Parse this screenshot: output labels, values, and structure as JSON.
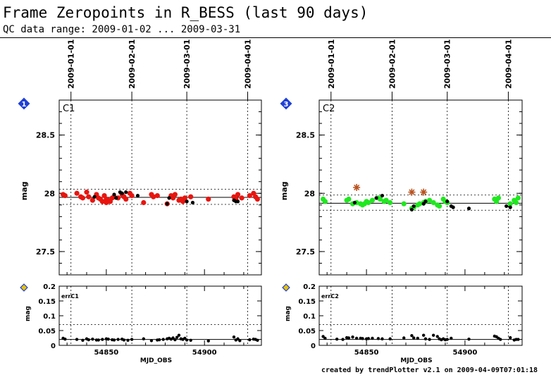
{
  "header": {
    "title": "Frame Zeropoints in R_BESS (last 90 days)",
    "subtitle": "QC data range: 2009-01-02 ... 2009-03-31"
  },
  "footer": "created by trendPlotter v2.1 on 2009-04-09T07:01:18",
  "colors": {
    "c1_points": "#e8150f",
    "c2_points": "#1fe81f",
    "outliers": "#000000",
    "star": "#b8521e",
    "badge": "#1f3fd6",
    "badge_small": "#e6c200"
  },
  "chart_data": [
    {
      "type": "scatter",
      "panel_label": "C1",
      "badge": "1",
      "ylabel": "mag",
      "xlim": [
        54826,
        54929
      ],
      "ylim": [
        27.3,
        28.8
      ],
      "yticks": [
        "27.5",
        "28",
        "28.5"
      ],
      "date_ticks": [
        {
          "label": "2009-01-01",
          "x": 54832
        },
        {
          "label": "2009-02-01",
          "x": 54863
        },
        {
          "label": "2009-03-01",
          "x": 54891
        },
        {
          "label": "2009-04-01",
          "x": 54922
        }
      ],
      "ref_line": 27.965,
      "band": [
        27.905,
        28.035
      ],
      "series": [
        {
          "color": "red",
          "points": [
            [
              54828,
              27.99
            ],
            [
              54829,
              27.98
            ],
            [
              54835,
              28.0
            ],
            [
              54837,
              27.97
            ],
            [
              54838,
              27.96
            ],
            [
              54840,
              28.01
            ],
            [
              54841,
              27.97
            ],
            [
              54843,
              27.94
            ],
            [
              54845,
              27.99
            ],
            [
              54846,
              27.96
            ],
            [
              54847,
              27.95
            ],
            [
              54848,
              27.93
            ],
            [
              54849,
              27.98
            ],
            [
              54850,
              27.92
            ],
            [
              54850,
              27.95
            ],
            [
              54851,
              27.94
            ],
            [
              54852,
              27.93
            ],
            [
              54853,
              27.96
            ],
            [
              54854,
              27.97
            ],
            [
              54856,
              27.96
            ],
            [
              54858,
              27.99
            ],
            [
              54859,
              27.97
            ],
            [
              54860,
              27.95
            ],
            [
              54862,
              28.0
            ],
            [
              54863,
              27.98
            ],
            [
              54869,
              27.92
            ],
            [
              54873,
              27.99
            ],
            [
              54874,
              27.97
            ],
            [
              54876,
              27.98
            ],
            [
              54881,
              27.91
            ],
            [
              54883,
              27.98
            ],
            [
              54884,
              27.96
            ],
            [
              54885,
              27.99
            ],
            [
              54887,
              27.94
            ],
            [
              54888,
              27.95
            ],
            [
              54889,
              27.93
            ],
            [
              54890,
              27.96
            ],
            [
              54893,
              27.97
            ],
            [
              54902,
              27.95
            ],
            [
              54915,
              27.97
            ],
            [
              54916,
              27.95
            ],
            [
              54917,
              27.99
            ],
            [
              54919,
              27.96
            ],
            [
              54923,
              27.98
            ],
            [
              54925,
              28.0
            ],
            [
              54926,
              27.97
            ],
            [
              54927,
              27.95
            ]
          ]
        },
        {
          "color": "black",
          "points": [
            [
              54844,
              27.97
            ],
            [
              54854,
              27.99
            ],
            [
              54855,
              27.96
            ],
            [
              54857,
              28.01
            ],
            [
              54858,
              28.0
            ],
            [
              54860,
              28.01
            ],
            [
              54866,
              27.98
            ],
            [
              54881,
              27.91
            ],
            [
              54882,
              27.96
            ],
            [
              54891,
              27.93
            ],
            [
              54894,
              27.92
            ],
            [
              54915,
              27.94
            ],
            [
              54916,
              27.93
            ],
            [
              54917,
              27.93
            ]
          ]
        }
      ],
      "err": {
        "label": "errC1",
        "ylabel": "mag",
        "xlabel": "MJD_OBS",
        "xticks": [
          "54850",
          "54900"
        ],
        "xtick_values": [
          54850,
          54900
        ],
        "ylim": [
          0,
          0.2
        ],
        "yticks": [
          "0",
          "0.05",
          "0.1",
          "0.15",
          "0.2"
        ],
        "ref_line": 0.02,
        "band_top": 0.07,
        "points": [
          [
            54828,
            0.024
          ],
          [
            54829,
            0.021
          ],
          [
            54835,
            0.02
          ],
          [
            54838,
            0.017
          ],
          [
            54840,
            0.022
          ],
          [
            54841,
            0.019
          ],
          [
            54843,
            0.021
          ],
          [
            54845,
            0.018
          ],
          [
            54846,
            0.018
          ],
          [
            54848,
            0.02
          ],
          [
            54850,
            0.022
          ],
          [
            54851,
            0.021
          ],
          [
            54853,
            0.019
          ],
          [
            54854,
            0.018
          ],
          [
            54856,
            0.02
          ],
          [
            54858,
            0.021
          ],
          [
            54859,
            0.018
          ],
          [
            54861,
            0.017
          ],
          [
            54863,
            0.02
          ],
          [
            54869,
            0.022
          ],
          [
            54873,
            0.016
          ],
          [
            54876,
            0.018
          ],
          [
            54877,
            0.019
          ],
          [
            54879,
            0.02
          ],
          [
            54881,
            0.022
          ],
          [
            54882,
            0.024
          ],
          [
            54883,
            0.021
          ],
          [
            54884,
            0.025
          ],
          [
            54885,
            0.019
          ],
          [
            54886,
            0.027
          ],
          [
            54887,
            0.034
          ],
          [
            54888,
            0.022
          ],
          [
            54889,
            0.02
          ],
          [
            54890,
            0.024
          ],
          [
            54891,
            0.018
          ],
          [
            54893,
            0.017
          ],
          [
            54902,
            0.015
          ],
          [
            54915,
            0.028
          ],
          [
            54916,
            0.018
          ],
          [
            54917,
            0.022
          ],
          [
            54918,
            0.016
          ],
          [
            54923,
            0.019
          ],
          [
            54925,
            0.021
          ],
          [
            54926,
            0.02
          ],
          [
            54927,
            0.017
          ]
        ]
      }
    },
    {
      "type": "scatter",
      "panel_label": "C2",
      "badge": "3",
      "ylabel": "mag",
      "xlim": [
        54826,
        54929
      ],
      "ylim": [
        27.3,
        28.8
      ],
      "yticks": [
        "27.5",
        "28",
        "28.5"
      ],
      "date_ticks": [
        {
          "label": "2009-01-01",
          "x": 54832
        },
        {
          "label": "2009-02-01",
          "x": 54863
        },
        {
          "label": "2009-03-01",
          "x": 54891
        },
        {
          "label": "2009-04-01",
          "x": 54922
        }
      ],
      "ref_line": 27.915,
      "band": [
        27.855,
        27.985
      ],
      "series": [
        {
          "color": "green",
          "points": [
            [
              54828,
              27.95
            ],
            [
              54829,
              27.93
            ],
            [
              54840,
              27.94
            ],
            [
              54841,
              27.95
            ],
            [
              54843,
              27.91
            ],
            [
              54845,
              27.92
            ],
            [
              54847,
              27.91
            ],
            [
              54848,
              27.9
            ],
            [
              54849,
              27.91
            ],
            [
              54850,
              27.93
            ],
            [
              54851,
              27.92
            ],
            [
              54853,
              27.94
            ],
            [
              54856,
              27.96
            ],
            [
              54857,
              27.95
            ],
            [
              54859,
              27.93
            ],
            [
              54860,
              27.94
            ],
            [
              54862,
              27.92
            ],
            [
              54869,
              27.91
            ],
            [
              54873,
              27.87
            ],
            [
              54874,
              27.88
            ],
            [
              54876,
              27.9
            ],
            [
              54877,
              27.91
            ],
            [
              54879,
              27.92
            ],
            [
              54880,
              27.93
            ],
            [
              54882,
              27.94
            ],
            [
              54884,
              27.92
            ],
            [
              54886,
              27.9
            ],
            [
              54887,
              27.89
            ],
            [
              54889,
              27.95
            ],
            [
              54890,
              27.93
            ],
            [
              54891,
              27.92
            ],
            [
              54915,
              27.95
            ],
            [
              54916,
              27.93
            ],
            [
              54917,
              27.96
            ],
            [
              54923,
              27.91
            ],
            [
              54925,
              27.94
            ],
            [
              54926,
              27.92
            ],
            [
              54927,
              27.96
            ]
          ]
        },
        {
          "color": "black",
          "points": [
            [
              54844,
              27.92
            ],
            [
              54855,
              27.96
            ],
            [
              54858,
              27.98
            ],
            [
              54873,
              27.86
            ],
            [
              54874,
              27.89
            ],
            [
              54879,
              27.91
            ],
            [
              54880,
              27.93
            ],
            [
              54891,
              27.93
            ],
            [
              54893,
              27.89
            ],
            [
              54894,
              27.88
            ],
            [
              54902,
              27.87
            ],
            [
              54921,
              27.89
            ],
            [
              54923,
              27.88
            ]
          ]
        }
      ],
      "stars": [
        [
          54845,
          28.05
        ],
        [
          54873,
          28.01
        ],
        [
          54879,
          28.01
        ]
      ],
      "err": {
        "label": "errC2",
        "ylabel": "mag",
        "xlabel": "MJD_OBS",
        "xticks": [
          "54850",
          "54900"
        ],
        "xtick_values": [
          54850,
          54900
        ],
        "ylim": [
          0,
          0.2
        ],
        "yticks": [
          "0",
          "0.05",
          "0.1",
          "0.15",
          "0.2"
        ],
        "ref_line": 0.02,
        "band_top": 0.07,
        "points": [
          [
            54828,
            0.03
          ],
          [
            54829,
            0.024
          ],
          [
            54835,
            0.021
          ],
          [
            54838,
            0.02
          ],
          [
            54840,
            0.026
          ],
          [
            54841,
            0.025
          ],
          [
            54843,
            0.028
          ],
          [
            54845,
            0.024
          ],
          [
            54847,
            0.024
          ],
          [
            54848,
            0.023
          ],
          [
            54850,
            0.022
          ],
          [
            54851,
            0.023
          ],
          [
            54853,
            0.024
          ],
          [
            54856,
            0.023
          ],
          [
            54858,
            0.022
          ],
          [
            54862,
            0.022
          ],
          [
            54869,
            0.025
          ],
          [
            54873,
            0.033
          ],
          [
            54874,
            0.025
          ],
          [
            54876,
            0.024
          ],
          [
            54879,
            0.034
          ],
          [
            54880,
            0.022
          ],
          [
            54882,
            0.02
          ],
          [
            54884,
            0.034
          ],
          [
            54886,
            0.03
          ],
          [
            54887,
            0.022
          ],
          [
            54888,
            0.019
          ],
          [
            54889,
            0.022
          ],
          [
            54890,
            0.019
          ],
          [
            54891,
            0.02
          ],
          [
            54893,
            0.024
          ],
          [
            54902,
            0.021
          ],
          [
            54915,
            0.031
          ],
          [
            54916,
            0.029
          ],
          [
            54917,
            0.024
          ],
          [
            54918,
            0.02
          ],
          [
            54923,
            0.026
          ],
          [
            54925,
            0.018
          ],
          [
            54926,
            0.02
          ],
          [
            54927,
            0.02
          ]
        ]
      }
    }
  ]
}
